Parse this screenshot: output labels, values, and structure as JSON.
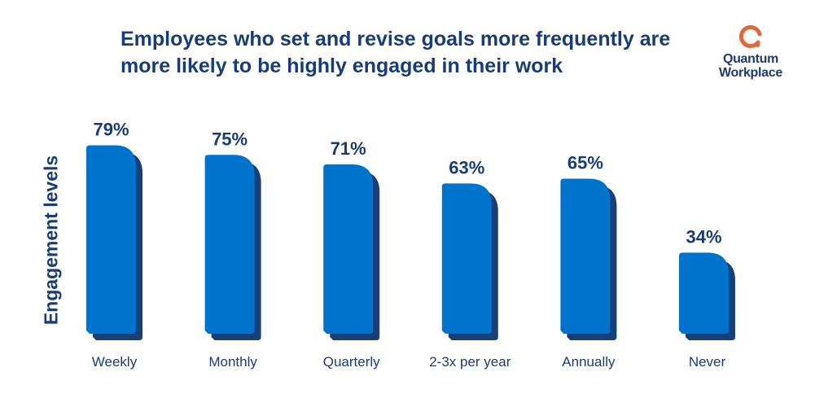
{
  "chart_data": {
    "type": "bar",
    "title": "Employees who set and revise goals more frequently are more likely to be highly engaged in their work",
    "ylabel": "Engagement levels",
    "xlabel": "",
    "categories": [
      "Weekly",
      "Monthly",
      "Quarterly",
      "2-3x per year",
      "Annually",
      "Never"
    ],
    "values": [
      79,
      75,
      71,
      63,
      65,
      34
    ],
    "value_labels": [
      "79%",
      "75%",
      "71%",
      "63%",
      "65%",
      "34%"
    ],
    "ylim": [
      0,
      100
    ],
    "grid": false,
    "colors": {
      "bar": "#0074cc",
      "bar_shadow": "#173f78",
      "text": "#183c78"
    }
  },
  "logo": {
    "text_line1": "Quantum",
    "text_line2": "Workplace",
    "color": "#dd6a3a"
  }
}
